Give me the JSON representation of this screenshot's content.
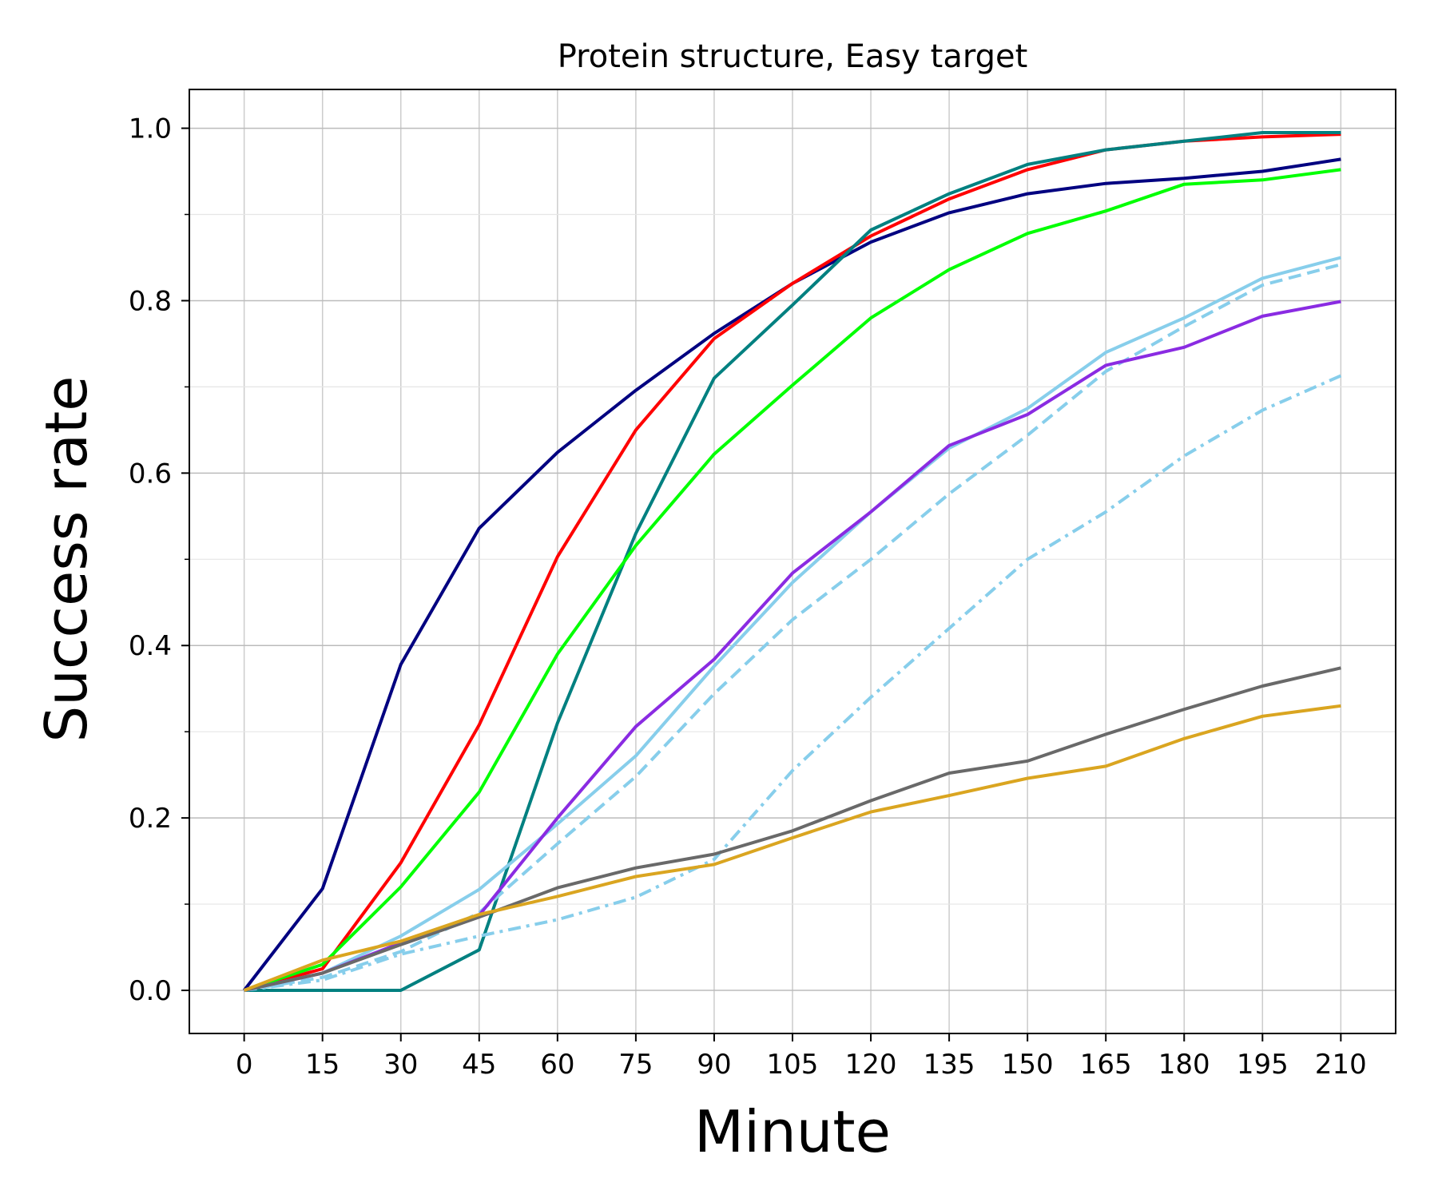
{
  "chart_data": {
    "type": "line",
    "title": "Protein structure, Easy target",
    "xlabel": "Minute",
    "ylabel": "Success rate",
    "x": [
      0,
      15,
      30,
      45,
      60,
      75,
      90,
      105,
      120,
      135,
      150,
      165,
      180,
      195,
      210
    ],
    "x_ticks": [
      "0",
      "15",
      "30",
      "45",
      "60",
      "75",
      "90",
      "105",
      "120",
      "135",
      "150",
      "165",
      "180",
      "195",
      "210"
    ],
    "y_ticks": [
      "0.0",
      "0.2",
      "0.4",
      "0.6",
      "0.8",
      "1.0"
    ],
    "xlim": [
      -10.5,
      220.5
    ],
    "ylim": [
      -0.05,
      1.045
    ],
    "grid": true,
    "series": [
      {
        "color": "#000080",
        "dash": "solid",
        "values": [
          0.0,
          0.118,
          0.378,
          0.536,
          0.624,
          0.696,
          0.762,
          0.82,
          0.868,
          0.902,
          0.924,
          0.936,
          0.942,
          0.95,
          0.964
        ]
      },
      {
        "color": "#ff0000",
        "dash": "solid",
        "values": [
          0.0,
          0.025,
          0.148,
          0.308,
          0.503,
          0.65,
          0.756,
          0.82,
          0.875,
          0.918,
          0.952,
          0.975,
          0.985,
          0.99,
          0.993
        ]
      },
      {
        "color": "#008080",
        "dash": "solid",
        "values": [
          0.0,
          0.0,
          0.0,
          0.047,
          0.31,
          0.53,
          0.71,
          0.795,
          0.882,
          0.924,
          0.958,
          0.975,
          0.985,
          0.995,
          0.995
        ]
      },
      {
        "color": "#00ff00",
        "dash": "solid",
        "values": [
          0.0,
          0.03,
          0.12,
          0.23,
          0.39,
          0.516,
          0.622,
          0.702,
          0.78,
          0.836,
          0.878,
          0.904,
          0.935,
          0.94,
          0.952
        ]
      },
      {
        "color": "#87ceeb",
        "dash": "solid",
        "values": [
          0.0,
          0.02,
          0.063,
          0.117,
          0.193,
          0.272,
          0.376,
          0.473,
          0.555,
          0.629,
          0.675,
          0.74,
          0.78,
          0.826,
          0.85
        ]
      },
      {
        "color": "#87ceeb",
        "dash": "dashed",
        "values": [
          0.0,
          0.015,
          0.045,
          0.09,
          0.17,
          0.248,
          0.344,
          0.43,
          0.5,
          0.576,
          0.644,
          0.718,
          0.77,
          0.818,
          0.842
        ]
      },
      {
        "color": "#87ceeb",
        "dash": "dashdot",
        "values": [
          0.0,
          0.012,
          0.042,
          0.063,
          0.082,
          0.108,
          0.152,
          0.255,
          0.34,
          0.42,
          0.5,
          0.555,
          0.62,
          0.673,
          0.713
        ]
      },
      {
        "color": "#8a2be2",
        "dash": "solid",
        "values": [
          0.0,
          0.02,
          0.055,
          0.087,
          0.2,
          0.306,
          0.384,
          0.484,
          0.555,
          0.632,
          0.668,
          0.725,
          0.746,
          0.782,
          0.799
        ]
      },
      {
        "color": "#696969",
        "dash": "solid",
        "values": [
          0.0,
          0.02,
          0.053,
          0.085,
          0.119,
          0.142,
          0.158,
          0.185,
          0.22,
          0.252,
          0.266,
          0.297,
          0.326,
          0.353,
          0.374
        ]
      },
      {
        "color": "#daa520",
        "dash": "solid",
        "values": [
          0.0,
          0.035,
          0.057,
          0.088,
          0.109,
          0.132,
          0.146,
          0.177,
          0.207,
          0.226,
          0.246,
          0.26,
          0.292,
          0.318,
          0.33
        ]
      }
    ]
  }
}
